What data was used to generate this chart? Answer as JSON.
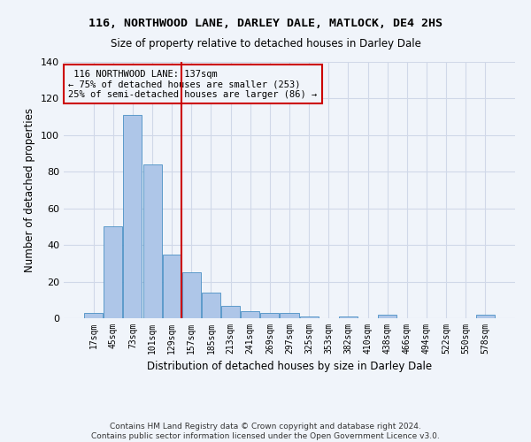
{
  "title": "116, NORTHWOOD LANE, DARLEY DALE, MATLOCK, DE4 2HS",
  "subtitle": "Size of property relative to detached houses in Darley Dale",
  "xlabel": "Distribution of detached houses by size in Darley Dale",
  "ylabel": "Number of detached properties",
  "footer_line1": "Contains HM Land Registry data © Crown copyright and database right 2024.",
  "footer_line2": "Contains public sector information licensed under the Open Government Licence v3.0.",
  "bar_categories": [
    "17sqm",
    "45sqm",
    "73sqm",
    "101sqm",
    "129sqm",
    "157sqm",
    "185sqm",
    "213sqm",
    "241sqm",
    "269sqm",
    "297sqm",
    "325sqm",
    "353sqm",
    "382sqm",
    "410sqm",
    "438sqm",
    "466sqm",
    "494sqm",
    "522sqm",
    "550sqm",
    "578sqm"
  ],
  "bar_values": [
    3,
    50,
    111,
    84,
    35,
    25,
    14,
    7,
    4,
    3,
    3,
    1,
    0,
    1,
    0,
    2,
    0,
    0,
    0,
    0,
    2
  ],
  "bar_color": "#aec6e8",
  "bar_edge_color": "#4a90c4",
  "property_label": "116 NORTHWOOD LANE: 137sqm",
  "pct_smaller": 75,
  "n_smaller": 253,
  "pct_larger_semi": 25,
  "n_larger_semi": 86,
  "vline_color": "#cc0000",
  "annotation_box_color": "#cc0000",
  "grid_color": "#d0d8e8",
  "bg_color": "#f0f4fa",
  "ylim": [
    0,
    140
  ],
  "yticks": [
    0,
    20,
    40,
    60,
    80,
    100,
    120,
    140
  ],
  "vline_x_bin": 4.5
}
